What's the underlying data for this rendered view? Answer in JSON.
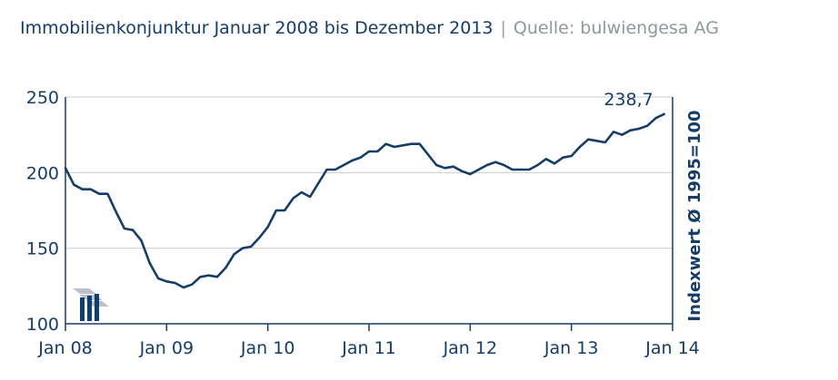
{
  "header": {
    "title": "Immobilienkonjunktur Januar 2008 bis Dezember 2013",
    "separator": "|",
    "source": "Quelle: bulwiengesa AG"
  },
  "colors": {
    "line": "#163c68",
    "axis": "#163c68",
    "grid": "#c8ccd0",
    "logo_light": "#b9c2cc",
    "logo_dark": "#163c68"
  },
  "logo": {
    "name": "bulwiengesa-logo-icon"
  },
  "chart_data": {
    "type": "line",
    "title": "Immobilienkonjunktur Januar 2008 bis Dezember 2013",
    "ylabel": "Indexwert Ø 1995=100",
    "xlabel": "",
    "ylim": [
      100,
      250
    ],
    "yticks": [
      100,
      150,
      200,
      250
    ],
    "ytick_labels": [
      "100",
      "150",
      "200",
      "250"
    ],
    "xlim_months": [
      "2008-01",
      "2014-01"
    ],
    "xtick_labels": [
      "Jan 08",
      "Jan 09",
      "Jan 10",
      "Jan 11",
      "Jan 12",
      "Jan 13",
      "Jan 14"
    ],
    "grid": "horizontal",
    "annotation": {
      "text": "238,7",
      "month": "2013-12",
      "value": 238.7
    },
    "series": [
      {
        "months": [
          "2008-01",
          "2008-02",
          "2008-03",
          "2008-04",
          "2008-05",
          "2008-06",
          "2008-07",
          "2008-08",
          "2008-09",
          "2008-10",
          "2008-11",
          "2008-12",
          "2009-01",
          "2009-02",
          "2009-03",
          "2009-04",
          "2009-05",
          "2009-06",
          "2009-07",
          "2009-08",
          "2009-09",
          "2009-10",
          "2009-11",
          "2009-12",
          "2010-01",
          "2010-02",
          "2010-03",
          "2010-04",
          "2010-05",
          "2010-06",
          "2010-07",
          "2010-08",
          "2010-09",
          "2010-10",
          "2010-11",
          "2010-12",
          "2011-01",
          "2011-02",
          "2011-03",
          "2011-04",
          "2011-05",
          "2011-06",
          "2011-07",
          "2011-08",
          "2011-09",
          "2011-10",
          "2011-11",
          "2011-12",
          "2012-01",
          "2012-02",
          "2012-03",
          "2012-04",
          "2012-05",
          "2012-06",
          "2012-07",
          "2012-08",
          "2012-09",
          "2012-10",
          "2012-11",
          "2012-12",
          "2013-01",
          "2013-02",
          "2013-03",
          "2013-04",
          "2013-05",
          "2013-06",
          "2013-07",
          "2013-08",
          "2013-09",
          "2013-10",
          "2013-11",
          "2013-12"
        ],
        "values": [
          203,
          192,
          189,
          189,
          186,
          186,
          174,
          163,
          162,
          155,
          140,
          130,
          128,
          127,
          124,
          126,
          131,
          132,
          131,
          137,
          146,
          150,
          151,
          157,
          164,
          175,
          175,
          183,
          187,
          184,
          193,
          202,
          202,
          205,
          208,
          210,
          214,
          214,
          219,
          217,
          218,
          219,
          219,
          212,
          205,
          203,
          204,
          201,
          199,
          202,
          205,
          207,
          205,
          202,
          202,
          202,
          205,
          209,
          206,
          210,
          211,
          217,
          222,
          221,
          220,
          227,
          225,
          228,
          229,
          231,
          236,
          238.7
        ]
      }
    ]
  }
}
